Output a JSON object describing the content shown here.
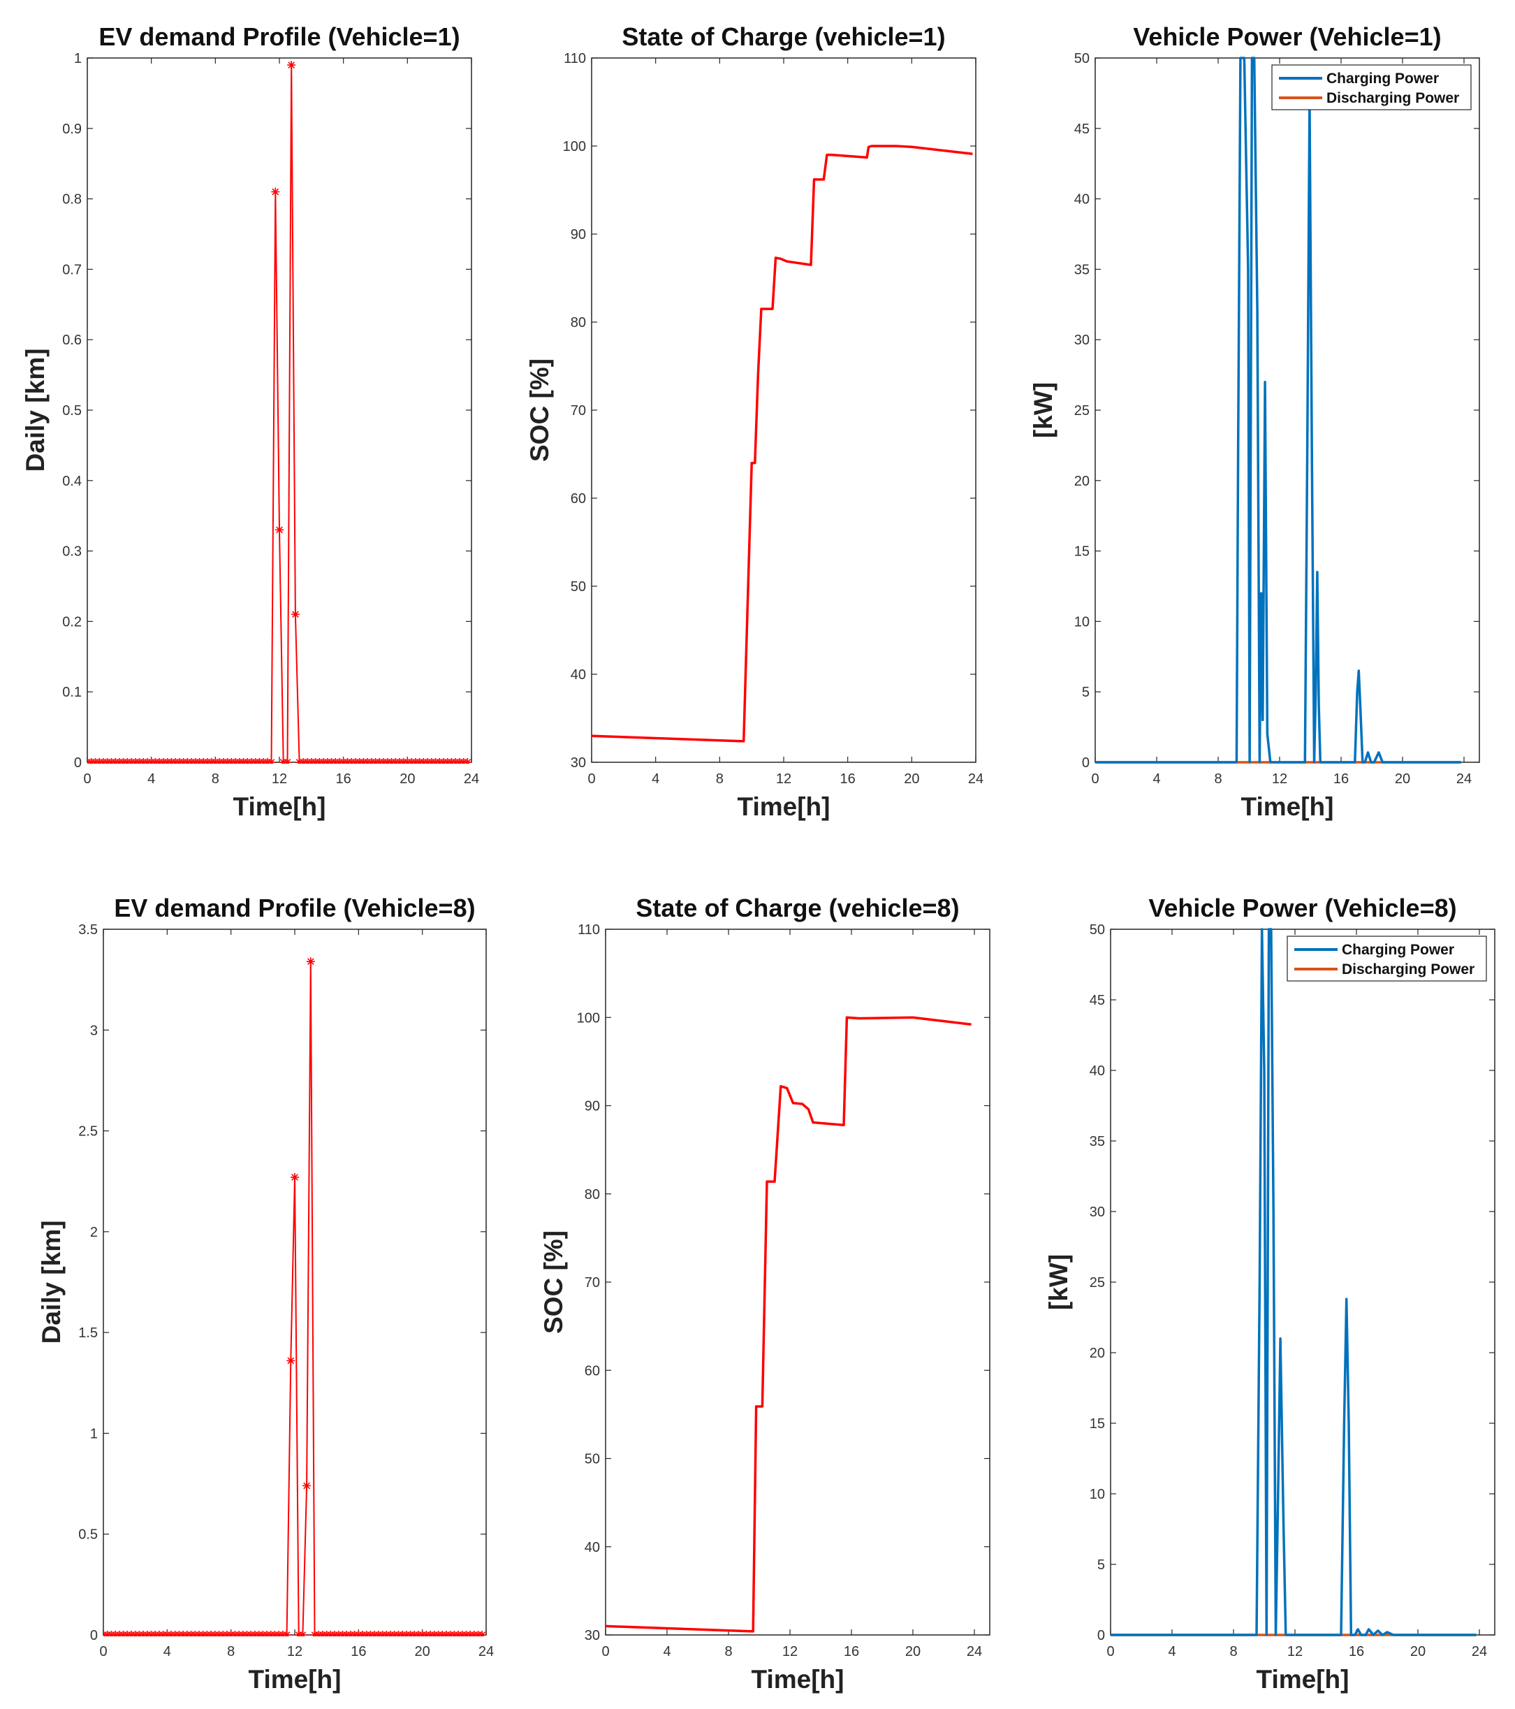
{
  "colors": {
    "demand": "#ff0000",
    "soc": "#ff0000",
    "charging": "#0072bd",
    "discharging": "#d95319",
    "axis": "#262626"
  },
  "chart_data": [
    {
      "id": "ev-demand-v1",
      "type": "line",
      "marker": "asterisk",
      "color": "#ff0000",
      "title": "EV demand Profile (Vehicle=1)",
      "xlabel": "Time[h]",
      "ylabel": "Daily [km]",
      "xlim": [
        0,
        24
      ],
      "ylim": [
        0,
        1
      ],
      "xticks": [
        0,
        4,
        8,
        12,
        16,
        20,
        24
      ],
      "yticks": [
        0,
        0.1,
        0.2,
        0.3,
        0.4,
        0.5,
        0.6,
        0.7,
        0.8,
        0.9,
        1
      ],
      "xtick_labels": [
        "0",
        "4",
        "8",
        "12",
        "16",
        "20",
        "24"
      ],
      "ytick_labels": [
        "0",
        "0.1",
        "0.2",
        "0.3",
        "0.4",
        "0.5",
        "0.6",
        "0.7",
        "0.8",
        "0.9",
        "1"
      ],
      "step": 0.25,
      "n": 96,
      "peaks": [
        [
          11.75,
          0.81
        ],
        [
          12.0,
          0.33
        ],
        [
          12.25,
          0.0
        ],
        [
          12.5,
          0.0
        ],
        [
          12.75,
          0.99
        ],
        [
          13.0,
          0.21
        ]
      ]
    },
    {
      "id": "soc-v1",
      "type": "line",
      "color": "#ff0000",
      "title": "State of Charge (vehicle=1)",
      "xlabel": "Time[h]",
      "ylabel": "SOC [%]",
      "xlim": [
        0,
        24
      ],
      "ylim": [
        30,
        110
      ],
      "xticks": [
        0,
        4,
        8,
        12,
        16,
        20,
        24
      ],
      "yticks": [
        30,
        40,
        50,
        60,
        70,
        80,
        90,
        100,
        110
      ],
      "xtick_labels": [
        "0",
        "4",
        "8",
        "12",
        "16",
        "20",
        "24"
      ],
      "ytick_labels": [
        "30",
        "40",
        "50",
        "60",
        "70",
        "80",
        "90",
        "100",
        "110"
      ],
      "x": [
        0,
        9.3,
        9.5,
        10.0,
        10.2,
        10.4,
        10.6,
        10.8,
        11.3,
        11.5,
        11.8,
        12.2,
        13.7,
        13.9,
        14.2,
        14.5,
        14.7,
        15.0,
        17.2,
        17.3,
        17.5,
        19.0,
        20.0,
        23.8
      ],
      "y": [
        33,
        32.4,
        32.4,
        64,
        64,
        74,
        81.5,
        81.5,
        81.5,
        87.3,
        87.2,
        86.9,
        86.5,
        96.2,
        96.2,
        96.2,
        99,
        99,
        98.7,
        99.9,
        100,
        100,
        99.9,
        99.1
      ]
    },
    {
      "id": "power-v1",
      "type": "line",
      "title": "Vehicle Power (Vehicle=1)",
      "xlabel": "Time[h]",
      "ylabel": "[kW]",
      "xlim": [
        0,
        25
      ],
      "ylim": [
        0,
        50
      ],
      "xticks": [
        0,
        4,
        8,
        12,
        16,
        20,
        24
      ],
      "yticks": [
        0,
        5,
        10,
        15,
        20,
        25,
        30,
        35,
        40,
        45,
        50
      ],
      "xtick_labels": [
        "0",
        "4",
        "8",
        "12",
        "16",
        "20",
        "24"
      ],
      "ytick_labels": [
        "0",
        "5",
        "10",
        "15",
        "20",
        "25",
        "30",
        "35",
        "40",
        "45",
        "50"
      ],
      "legend": [
        "Charging Power",
        "Discharging Power"
      ],
      "legend_loc": "top-right",
      "series": [
        {
          "name": "Charging Power",
          "color": "#0072bd",
          "x": [
            0,
            9.2,
            9.3,
            9.45,
            9.7,
            9.95,
            10.05,
            10.2,
            10.35,
            10.55,
            10.7,
            10.8,
            10.9,
            11.05,
            11.2,
            11.4,
            11.6,
            11.8,
            13.65,
            13.8,
            13.95,
            14.1,
            14.25,
            14.35,
            14.45,
            14.55,
            14.65,
            14.8,
            16.9,
            17.05,
            17.15,
            17.25,
            17.4,
            17.55,
            17.75,
            17.95,
            18.15,
            18.45,
            18.7,
            18.95,
            23.8
          ],
          "y": [
            0,
            0,
            22,
            50,
            50,
            35,
            0,
            50,
            50,
            32,
            0,
            12,
            3,
            27,
            2,
            0,
            0,
            0,
            0,
            22,
            47,
            22,
            0,
            5,
            13.5,
            4,
            0,
            0,
            0,
            5,
            6.5,
            4,
            0,
            0,
            0.7,
            0,
            0,
            0.7,
            0,
            0,
            0
          ]
        },
        {
          "name": "Discharging Power",
          "color": "#d95319",
          "x": [
            0,
            23.8
          ],
          "y": [
            0,
            0
          ]
        }
      ]
    },
    {
      "id": "ev-demand-v8",
      "type": "line",
      "marker": "asterisk",
      "color": "#ff0000",
      "title": "EV demand Profile (Vehicle=8)",
      "xlabel": "Time[h]",
      "ylabel": "Daily [km]",
      "xlim": [
        0,
        24
      ],
      "ylim": [
        0,
        3.5
      ],
      "xticks": [
        0,
        4,
        8,
        12,
        16,
        20,
        24
      ],
      "yticks": [
        0,
        0.5,
        1,
        1.5,
        2,
        2.5,
        3,
        3.5
      ],
      "xtick_labels": [
        "0",
        "4",
        "8",
        "12",
        "16",
        "20",
        "24"
      ],
      "ytick_labels": [
        "0",
        "0.5",
        "1",
        "1.5",
        "2",
        "2.5",
        "3",
        "3.5"
      ],
      "step": 0.25,
      "n": 96,
      "peaks": [
        [
          11.75,
          1.36
        ],
        [
          12.0,
          2.27
        ],
        [
          12.25,
          0.0
        ],
        [
          12.5,
          0.0
        ],
        [
          12.75,
          0.74
        ],
        [
          13.0,
          3.34
        ]
      ]
    },
    {
      "id": "soc-v8",
      "type": "line",
      "color": "#ff0000",
      "title": "State of Charge (vehicle=8)",
      "xlabel": "Time[h]",
      "ylabel": "SOC [%]",
      "xlim": [
        0,
        25
      ],
      "ylim": [
        30,
        110
      ],
      "xticks": [
        0,
        4,
        8,
        12,
        16,
        20,
        24
      ],
      "yticks": [
        30,
        40,
        50,
        60,
        70,
        80,
        90,
        100,
        110
      ],
      "xtick_labels": [
        "0",
        "4",
        "8",
        "12",
        "16",
        "20",
        "24"
      ],
      "ytick_labels": [
        "30",
        "40",
        "50",
        "60",
        "70",
        "80",
        "90",
        "100",
        "110"
      ],
      "x": [
        0,
        9.6,
        9.8,
        10.2,
        10.5,
        11.0,
        11.4,
        11.8,
        12.2,
        12.8,
        13.2,
        13.5,
        15.5,
        15.7,
        16.5,
        20.0,
        23.8
      ],
      "y": [
        31,
        30.4,
        55.9,
        55.9,
        81.4,
        81.4,
        92.2,
        92,
        90.3,
        90.2,
        89.6,
        88.1,
        87.8,
        100,
        99.9,
        100,
        99.2
      ]
    },
    {
      "id": "power-v8",
      "type": "line",
      "title": "Vehicle Power (Vehicle=8)",
      "xlabel": "Time[h]",
      "ylabel": "[kW]",
      "xlim": [
        0,
        25
      ],
      "ylim": [
        0,
        50
      ],
      "xticks": [
        0,
        4,
        8,
        12,
        16,
        20,
        24
      ],
      "yticks": [
        0,
        5,
        10,
        15,
        20,
        25,
        30,
        35,
        40,
        45,
        50
      ],
      "xtick_labels": [
        "0",
        "4",
        "8",
        "12",
        "16",
        "20",
        "24"
      ],
      "ytick_labels": [
        "0",
        "5",
        "10",
        "15",
        "20",
        "25",
        "30",
        "35",
        "40",
        "45",
        "50"
      ],
      "legend": [
        "Charging Power",
        "Discharging Power"
      ],
      "legend_loc": "top-right",
      "series": [
        {
          "name": "Charging Power",
          "color": "#0072bd",
          "x": [
            0,
            9.5,
            9.7,
            9.85,
            10.0,
            10.15,
            10.3,
            10.45,
            10.6,
            10.75,
            10.9,
            11.05,
            11.25,
            11.4,
            11.6,
            11.8,
            15.0,
            15.2,
            15.35,
            15.5,
            15.65,
            15.9,
            16.1,
            16.3,
            16.6,
            16.8,
            17.1,
            17.4,
            17.7,
            18.0,
            18.4,
            19.0,
            23.8
          ],
          "y": [
            0,
            0,
            25,
            50,
            40,
            0,
            50,
            50,
            30,
            0,
            10,
            21,
            8,
            0,
            0,
            0,
            0,
            15,
            23.8,
            15,
            0,
            0,
            0.4,
            0,
            0,
            0.4,
            0,
            0.3,
            0,
            0.2,
            0,
            0,
            0
          ]
        },
        {
          "name": "Discharging Power",
          "color": "#d95319",
          "x": [
            0,
            23.8
          ],
          "y": [
            0,
            0
          ]
        }
      ]
    }
  ]
}
